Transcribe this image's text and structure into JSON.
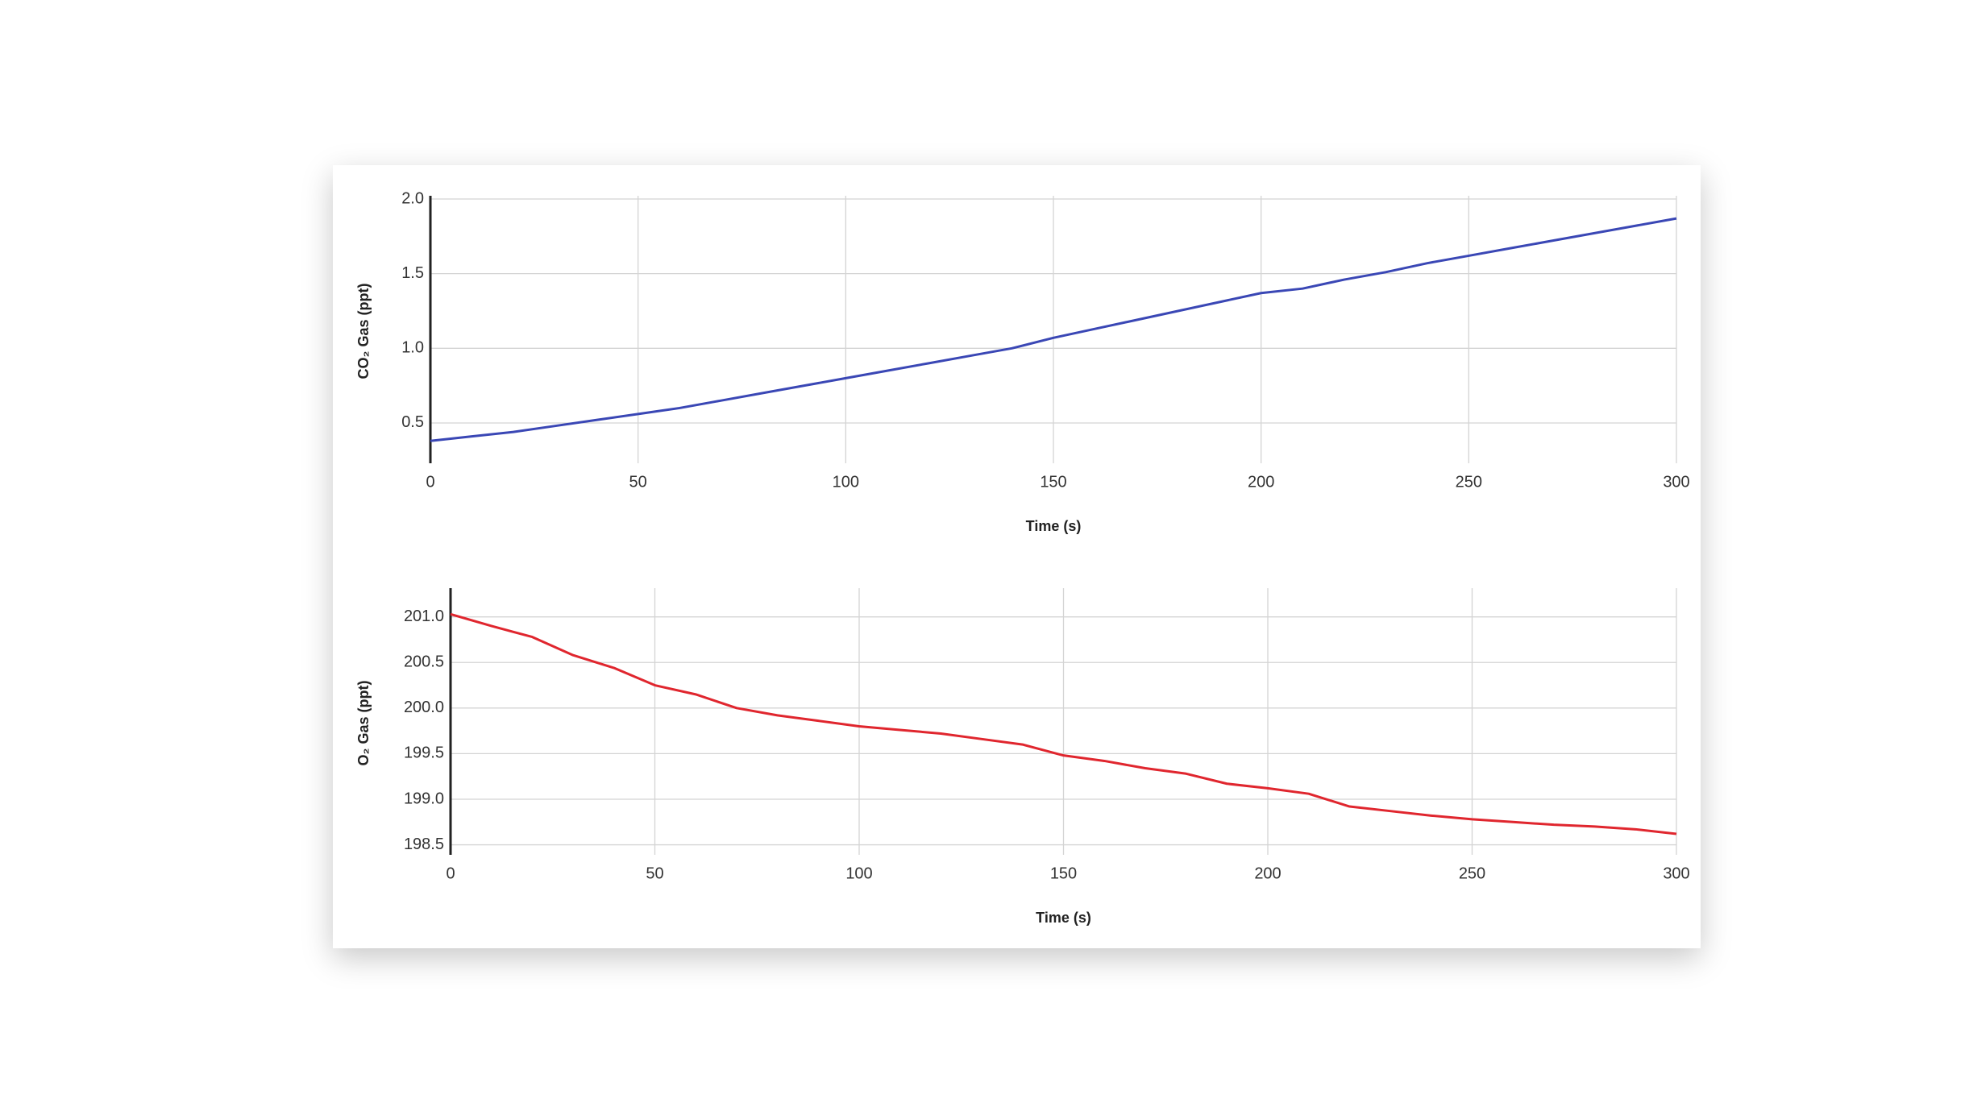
{
  "chart_data": [
    {
      "type": "line",
      "xlabel": "Time (s)",
      "ylabel": "CO₂ Gas (ppt)",
      "color": "#3a47b5",
      "grid": true,
      "x": [
        0,
        10,
        20,
        30,
        40,
        50,
        60,
        70,
        80,
        90,
        100,
        110,
        120,
        130,
        140,
        150,
        160,
        170,
        180,
        190,
        200,
        210,
        220,
        230,
        240,
        250,
        260,
        270,
        280,
        290,
        300
      ],
      "values": [
        0.38,
        0.41,
        0.44,
        0.48,
        0.52,
        0.56,
        0.6,
        0.65,
        0.7,
        0.75,
        0.8,
        0.85,
        0.9,
        0.95,
        1.0,
        1.07,
        1.13,
        1.19,
        1.25,
        1.31,
        1.37,
        1.4,
        1.46,
        1.51,
        1.57,
        1.62,
        1.67,
        1.72,
        1.77,
        1.82,
        1.87
      ],
      "xlim": [
        0,
        300
      ],
      "xticks": [
        0,
        50,
        100,
        150,
        200,
        250,
        300
      ],
      "ylim": [
        0.23,
        2.0
      ],
      "yticks": [
        0.5,
        {
          "value": 1,
          "label": "1.0"
        },
        1.5,
        {
          "value": 2,
          "label": "2.0"
        }
      ]
    },
    {
      "type": "line",
      "xlabel": "Time (s)",
      "ylabel": "O₂ Gas (ppt)",
      "color": "#e0262e",
      "grid": true,
      "x": [
        0,
        10,
        20,
        30,
        40,
        50,
        60,
        70,
        80,
        90,
        100,
        110,
        120,
        130,
        140,
        150,
        160,
        170,
        180,
        190,
        200,
        210,
        220,
        230,
        240,
        250,
        260,
        270,
        280,
        290,
        300
      ],
      "values": [
        201.03,
        200.9,
        200.78,
        200.58,
        200.44,
        200.25,
        200.15,
        200.0,
        199.92,
        199.86,
        199.8,
        199.76,
        199.72,
        199.66,
        199.6,
        199.48,
        199.42,
        199.34,
        199.28,
        199.17,
        199.12,
        199.06,
        198.92,
        198.87,
        198.82,
        198.78,
        198.75,
        198.72,
        198.7,
        198.67,
        198.62
      ],
      "xlim": [
        0,
        300
      ],
      "xticks": [
        0,
        50,
        100,
        150,
        200,
        250,
        300
      ],
      "ylim": [
        198.39,
        201.28
      ],
      "yticks": [
        198.5,
        {
          "value": 199,
          "label": "199.0"
        },
        199.5,
        {
          "value": 200,
          "label": "200.0"
        },
        200.5,
        {
          "value": 201,
          "label": "201.0"
        }
      ]
    }
  ]
}
